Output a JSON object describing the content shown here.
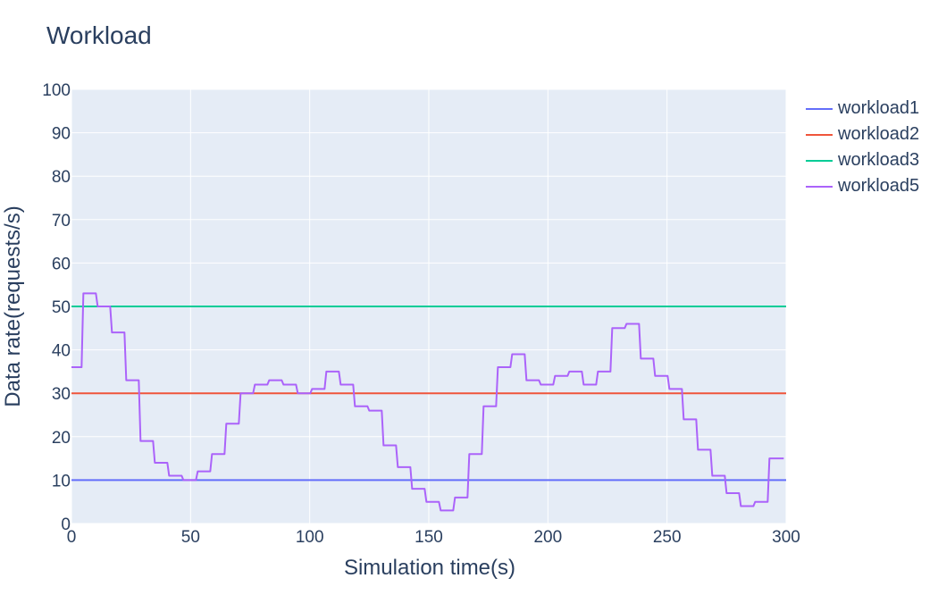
{
  "chart_data": {
    "type": "line",
    "title": "Workload",
    "xlabel": "Simulation time(s)",
    "ylabel": "Data rate(requests/s)",
    "xlim": [
      0,
      300
    ],
    "ylim": [
      0,
      100
    ],
    "xticks": [
      0,
      50,
      100,
      150,
      200,
      250,
      300
    ],
    "yticks": [
      0,
      10,
      20,
      30,
      40,
      50,
      60,
      70,
      80,
      90,
      100
    ],
    "grid": true,
    "legend_position": "right",
    "plot_background": "#e5ecf6",
    "line_shape": "step",
    "series": [
      {
        "name": "workload1",
        "color": "#636efa",
        "x": [
          0,
          300
        ],
        "y": [
          10,
          10
        ]
      },
      {
        "name": "workload2",
        "color": "#ef553b",
        "x": [
          0,
          300
        ],
        "y": [
          30,
          30
        ]
      },
      {
        "name": "workload3",
        "color": "#00cc96",
        "x": [
          0,
          300
        ],
        "y": [
          50,
          50
        ]
      },
      {
        "name": "workload5",
        "color": "#ab63fa",
        "x": [
          0,
          5,
          11,
          17,
          23,
          29,
          35,
          41,
          47,
          53,
          59,
          65,
          71,
          77,
          83,
          89,
          95,
          101,
          107,
          113,
          119,
          125,
          131,
          137,
          143,
          149,
          155,
          161,
          167,
          173,
          179,
          185,
          191,
          197,
          203,
          209,
          215,
          221,
          227,
          233,
          239,
          245,
          251,
          257,
          263,
          269,
          275,
          281,
          287,
          293,
          299
        ],
        "y": [
          36,
          53,
          50,
          44,
          33,
          19,
          14,
          11,
          10,
          12,
          16,
          23,
          30,
          32,
          33,
          32,
          30,
          31,
          35,
          32,
          27,
          26,
          18,
          13,
          8,
          5,
          3,
          6,
          16,
          27,
          36,
          39,
          33,
          32,
          34,
          35,
          32,
          35,
          45,
          46,
          38,
          34,
          31,
          24,
          17,
          11,
          7,
          4,
          5,
          15,
          15
        ]
      }
    ]
  }
}
